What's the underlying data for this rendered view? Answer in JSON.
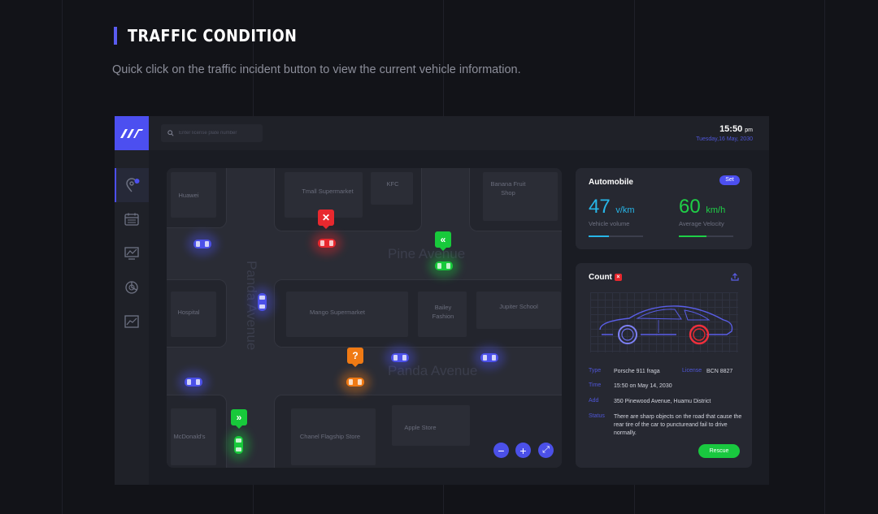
{
  "page": {
    "title": "TRAFFIC CONDITION",
    "subtitle": "Quick click on the traffic incident button to view the current vehicle information."
  },
  "header": {
    "search_placeholder": "Enter license plate number",
    "time": "15:50",
    "time_suffix": "pm",
    "date": "Tuesday,16 May, 2030"
  },
  "sidebar": {
    "items": [
      {
        "name": "map-location-icon",
        "active": true
      },
      {
        "name": "calendar-icon",
        "active": false
      },
      {
        "name": "monitor-chart-icon",
        "active": false
      },
      {
        "name": "pie-chart-icon",
        "active": false
      },
      {
        "name": "line-chart-icon",
        "active": false
      }
    ]
  },
  "map": {
    "places": {
      "huawei": "Huawei",
      "tmall": "Tmall Supermarket",
      "kfc": "KFC",
      "banana": "Banana Fruit Shop",
      "hospital": "Hospital",
      "mango": "Mango Supermarket",
      "bailey": "Bailey Fashion",
      "jupiter": "Jupiter School",
      "mcdonalds": "McDonald's",
      "chanel": "Chanel Flagship Store",
      "apple": "Apple Store"
    },
    "streets": {
      "pine": "Pine Avenue",
      "panda_h": "Panda Avenue",
      "panda_v": "Panda Avenue"
    },
    "markers": {
      "red": "✕",
      "green_top": "«",
      "orange": "?",
      "green_bottom": "»"
    },
    "zoom": {
      "out": "−",
      "in": "+",
      "expand": "⤢"
    }
  },
  "automobile": {
    "title": "Automobile",
    "set_label": "Set",
    "volume": {
      "value": "47",
      "unit": "v/km",
      "label": "Vehicle volume",
      "color": "#27b6e8",
      "level": 0.38
    },
    "velocity": {
      "value": "60",
      "unit": "km/h",
      "label": "Average Velocity",
      "color": "#1fcf47",
      "level": 0.5
    }
  },
  "count": {
    "title": "Count",
    "rows": [
      {
        "key": "Type",
        "value": "Porsche 911 fraga",
        "key2": "License",
        "value2": "BCN 8827"
      },
      {
        "key": "Time",
        "value": "15:50 on May 14, 2030"
      },
      {
        "key": "Add",
        "value": "350 Pinewood Avenue, Huamu District"
      },
      {
        "key": "Status",
        "value": "There are sharp objects on the road that cause the rear tire of the car to punctureand fail to drive normally."
      }
    ],
    "rescue_label": "Rescue"
  },
  "colors": {
    "accent": "#4c4ff0",
    "incident_red": "#e8282e",
    "normal_green": "#18c93b",
    "warning_orange": "#f07a14",
    "car_blue": "#4b50e8"
  }
}
